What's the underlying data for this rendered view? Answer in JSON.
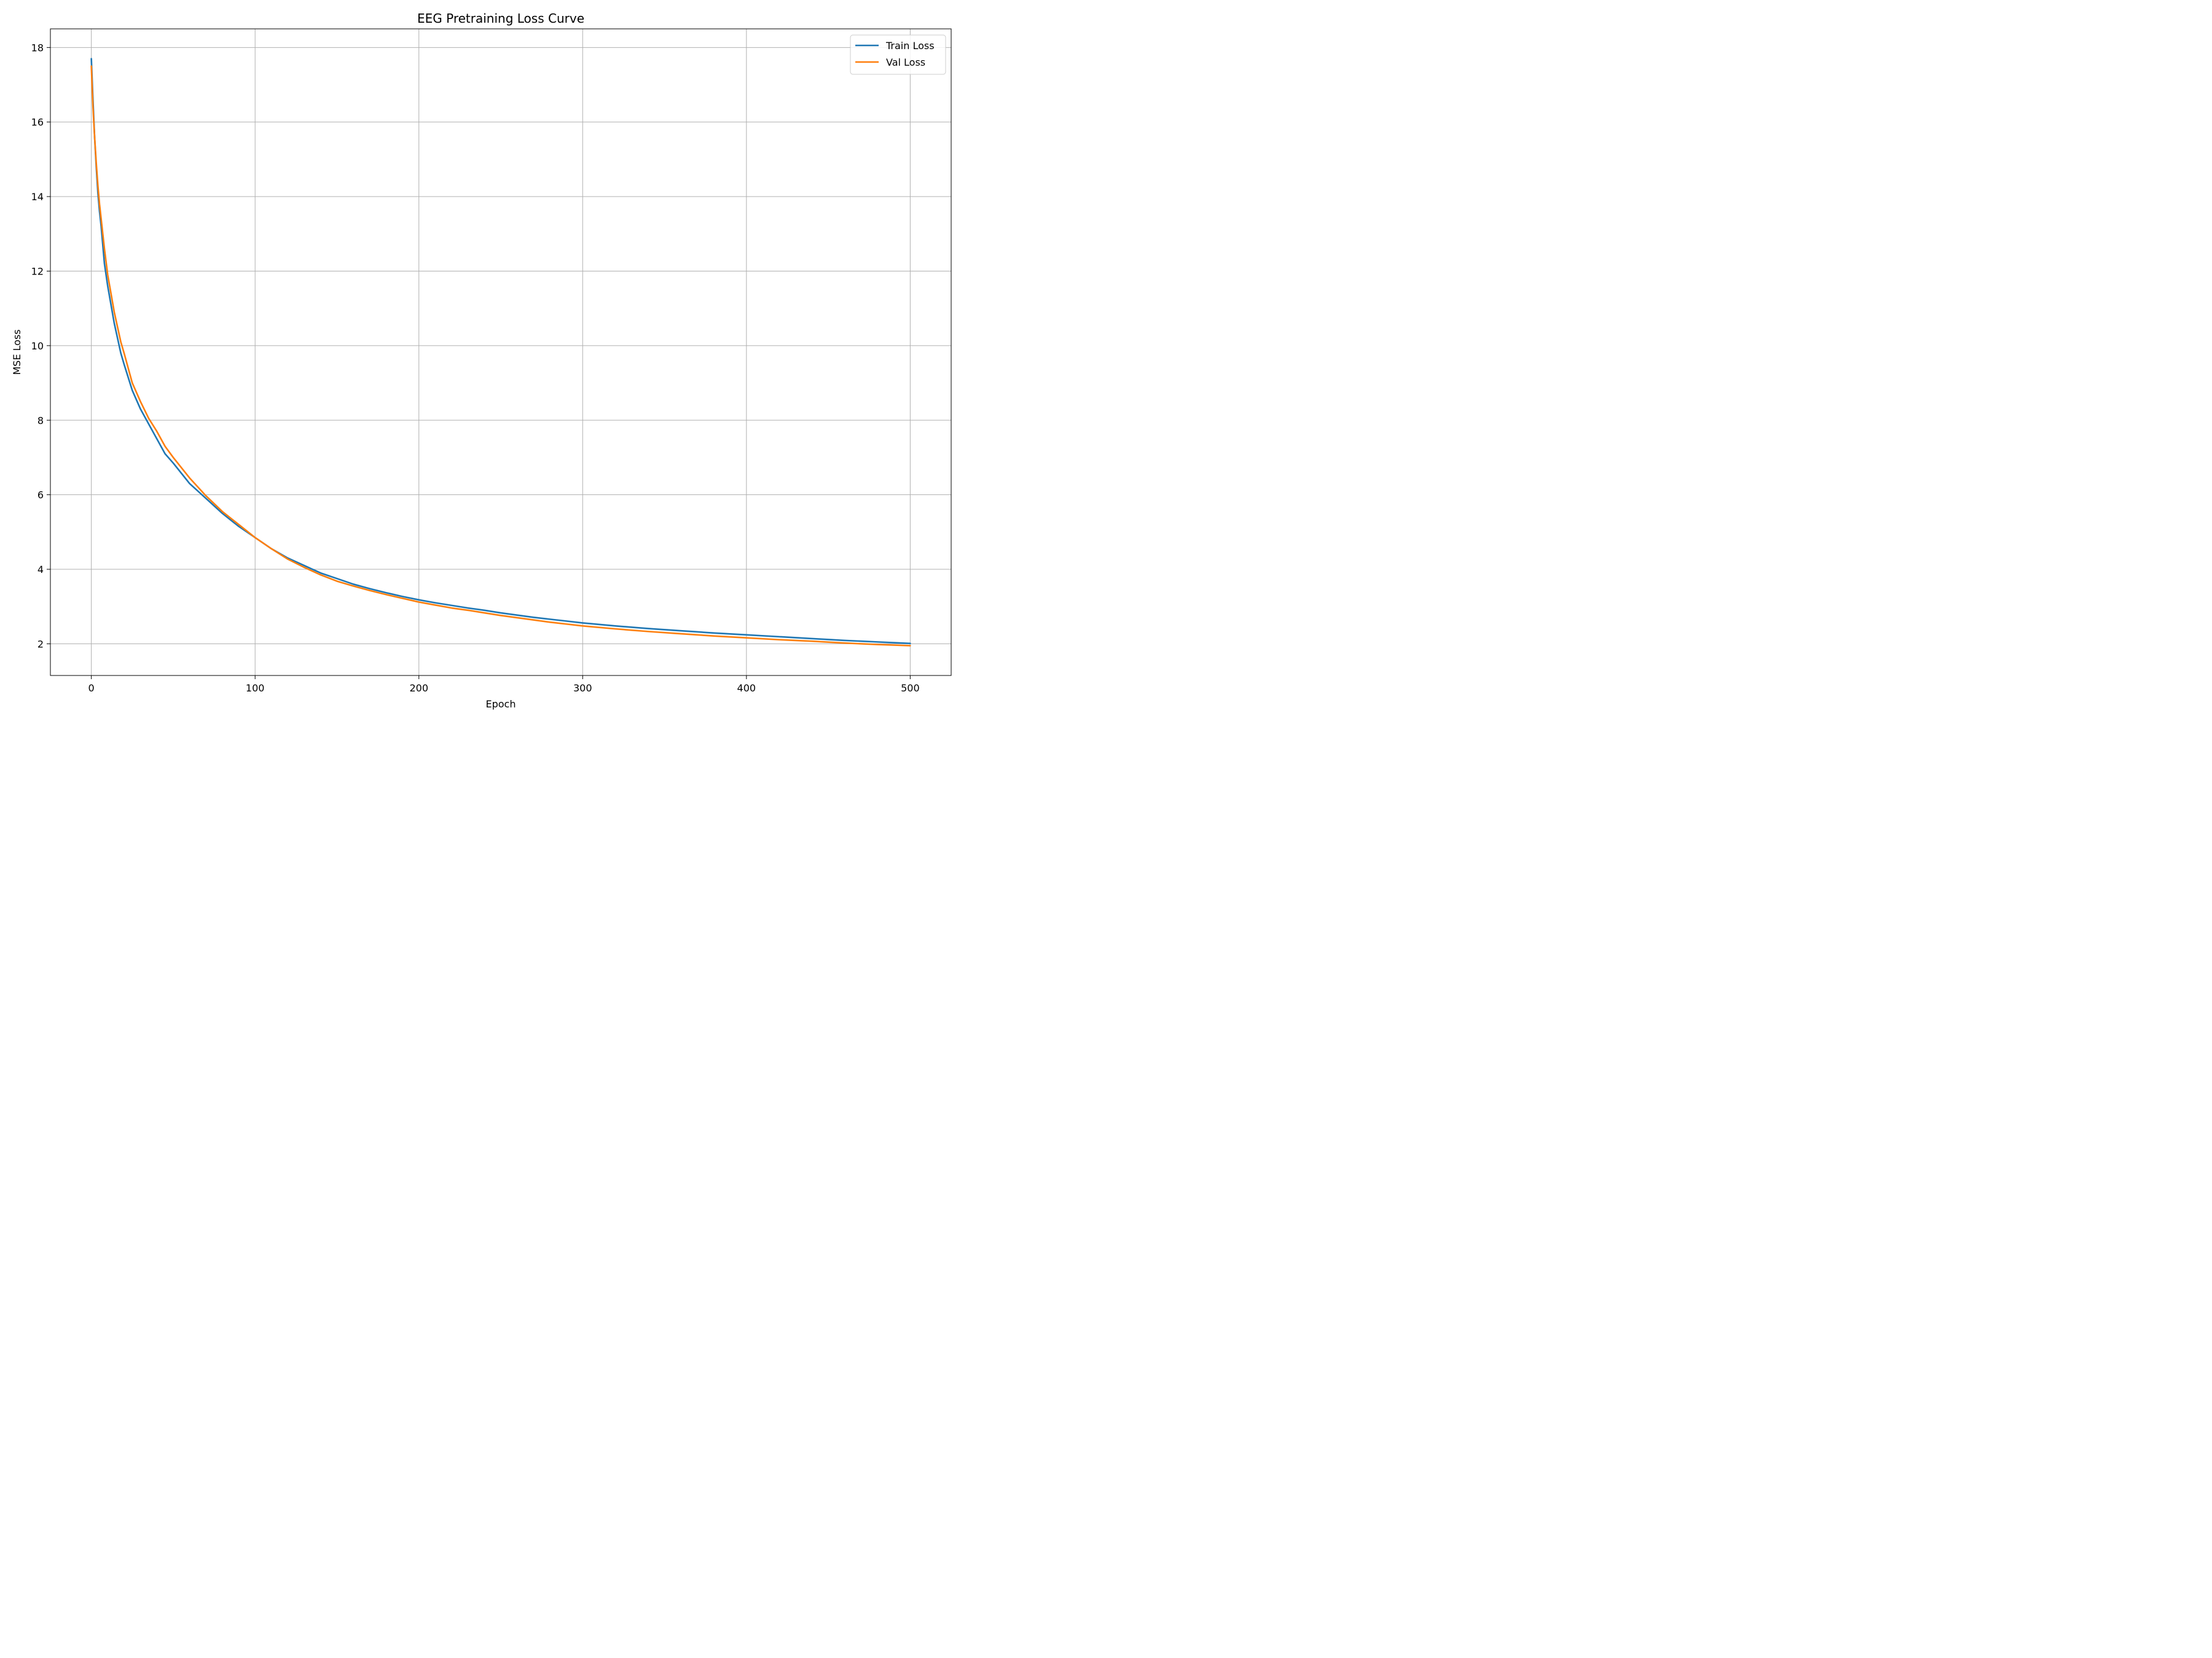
{
  "chart_data": {
    "type": "line",
    "title": "EEG Pretraining Loss Curve",
    "xlabel": "Epoch",
    "ylabel": "MSE Loss",
    "xlim": [
      -25,
      525
    ],
    "ylim": [
      1.15,
      18.5
    ],
    "xticks": [
      0,
      100,
      200,
      300,
      400,
      500
    ],
    "yticks": [
      2,
      4,
      6,
      8,
      10,
      12,
      14,
      16,
      18
    ],
    "grid": true,
    "legend_position": "top-right",
    "series": [
      {
        "name": "Train Loss",
        "color": "#1f77b4",
        "x": [
          0,
          1,
          2,
          3,
          4,
          5,
          6,
          8,
          10,
          12,
          14,
          16,
          18,
          20,
          25,
          30,
          35,
          40,
          45,
          50,
          60,
          70,
          80,
          90,
          100,
          110,
          120,
          130,
          140,
          150,
          160,
          170,
          180,
          190,
          200,
          210,
          220,
          230,
          240,
          250,
          260,
          270,
          280,
          290,
          300,
          320,
          340,
          360,
          380,
          400,
          420,
          440,
          460,
          480,
          500
        ],
        "values": [
          17.7,
          16.6,
          15.6,
          14.8,
          14.1,
          13.6,
          13.2,
          12.2,
          11.6,
          11.1,
          10.6,
          10.2,
          9.8,
          9.5,
          8.8,
          8.3,
          7.9,
          7.5,
          7.1,
          6.85,
          6.3,
          5.9,
          5.5,
          5.15,
          4.85,
          4.55,
          4.3,
          4.1,
          3.9,
          3.75,
          3.6,
          3.48,
          3.37,
          3.27,
          3.18,
          3.1,
          3.03,
          2.96,
          2.9,
          2.83,
          2.77,
          2.71,
          2.66,
          2.61,
          2.56,
          2.48,
          2.41,
          2.35,
          2.29,
          2.24,
          2.19,
          2.14,
          2.09,
          2.05,
          2.01
        ]
      },
      {
        "name": "Val Loss",
        "color": "#ff7f0e",
        "x": [
          0,
          1,
          2,
          3,
          4,
          5,
          6,
          8,
          10,
          12,
          14,
          16,
          18,
          20,
          25,
          30,
          35,
          40,
          45,
          50,
          60,
          70,
          80,
          90,
          100,
          110,
          120,
          130,
          140,
          150,
          160,
          170,
          180,
          190,
          200,
          210,
          220,
          230,
          240,
          250,
          260,
          270,
          280,
          290,
          300,
          320,
          340,
          360,
          380,
          400,
          420,
          440,
          460,
          480,
          500
        ],
        "values": [
          17.5,
          16.4,
          15.6,
          14.9,
          14.3,
          13.8,
          13.4,
          12.6,
          11.9,
          11.4,
          10.9,
          10.5,
          10.1,
          9.8,
          9.0,
          8.5,
          8.05,
          7.7,
          7.3,
          7.0,
          6.45,
          5.97,
          5.55,
          5.2,
          4.85,
          4.55,
          4.27,
          4.05,
          3.85,
          3.68,
          3.55,
          3.43,
          3.32,
          3.22,
          3.12,
          3.04,
          2.96,
          2.9,
          2.83,
          2.76,
          2.7,
          2.64,
          2.58,
          2.53,
          2.48,
          2.4,
          2.33,
          2.27,
          2.21,
          2.16,
          2.11,
          2.07,
          2.02,
          1.98,
          1.95
        ]
      }
    ]
  }
}
